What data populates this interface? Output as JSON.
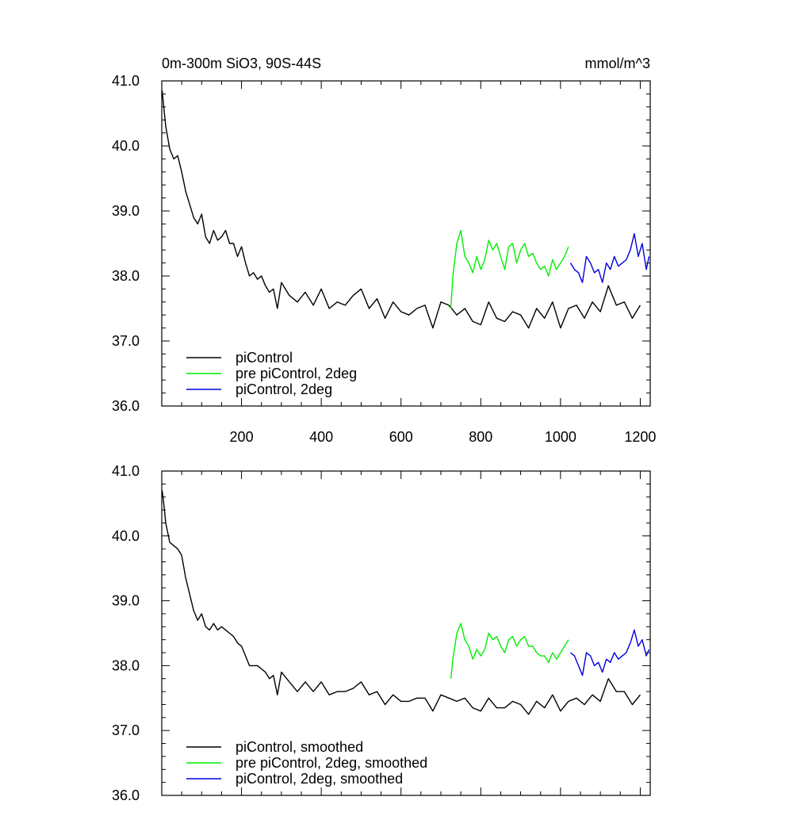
{
  "header": {
    "title": "0m-300m SiO3, 90S-44S",
    "units": "mmol/m^3"
  },
  "colors": {
    "piControl": "#000000",
    "pre_piControl_2deg": "#00ee00",
    "piControl_2deg": "#0000dd"
  },
  "chart_data": [
    {
      "type": "line",
      "panel": "top",
      "title": "0m-300m SiO3, 90S-44S",
      "units_label": "mmol/m^3",
      "xlim": [
        0,
        1225
      ],
      "ylim": [
        36.0,
        41.0
      ],
      "xticks": [
        200,
        400,
        600,
        800,
        1000,
        1200
      ],
      "xtick_labels": [
        "200",
        "400",
        "600",
        "800",
        "1000",
        "1200"
      ],
      "yticks": [
        36.0,
        37.0,
        38.0,
        39.0,
        40.0,
        41.0
      ],
      "ytick_labels": [
        "36.0",
        "37.0",
        "38.0",
        "39.0",
        "40.0",
        "41.0"
      ],
      "legend": {
        "position": "bottom-left"
      },
      "series": [
        {
          "name": "piControl",
          "color": "#000000",
          "x": [
            1,
            5,
            10,
            20,
            30,
            40,
            50,
            60,
            70,
            80,
            90,
            100,
            110,
            120,
            130,
            140,
            150,
            160,
            170,
            180,
            190,
            200,
            210,
            220,
            230,
            240,
            250,
            260,
            270,
            280,
            290,
            300,
            320,
            340,
            360,
            380,
            400,
            420,
            440,
            460,
            480,
            500,
            520,
            540,
            560,
            580,
            600,
            620,
            640,
            660,
            680,
            700,
            720,
            740,
            760,
            780,
            800,
            820,
            840,
            860,
            880,
            900,
            920,
            940,
            960,
            980,
            1000,
            1020,
            1040,
            1060,
            1080,
            1100,
            1120,
            1140,
            1160,
            1180,
            1200
          ],
          "values": [
            40.85,
            40.6,
            40.3,
            39.95,
            39.8,
            39.85,
            39.6,
            39.3,
            39.1,
            38.9,
            38.8,
            38.95,
            38.6,
            38.5,
            38.7,
            38.55,
            38.6,
            38.7,
            38.5,
            38.5,
            38.3,
            38.45,
            38.2,
            38.0,
            38.05,
            37.95,
            38.0,
            37.85,
            37.75,
            37.8,
            37.5,
            37.9,
            37.7,
            37.6,
            37.75,
            37.55,
            37.8,
            37.5,
            37.6,
            37.55,
            37.7,
            37.8,
            37.5,
            37.65,
            37.35,
            37.6,
            37.45,
            37.4,
            37.5,
            37.55,
            37.2,
            37.6,
            37.55,
            37.4,
            37.5,
            37.3,
            37.25,
            37.6,
            37.35,
            37.3,
            37.45,
            37.4,
            37.2,
            37.5,
            37.35,
            37.6,
            37.2,
            37.5,
            37.55,
            37.35,
            37.6,
            37.45,
            37.85,
            37.55,
            37.6,
            37.35,
            37.55
          ]
        },
        {
          "name": "pre piControl, 2deg",
          "color": "#00ee00",
          "x": [
            725,
            730,
            740,
            750,
            760,
            770,
            780,
            790,
            800,
            810,
            820,
            830,
            840,
            850,
            860,
            870,
            880,
            890,
            900,
            910,
            920,
            930,
            940,
            950,
            960,
            970,
            980,
            990,
            1000,
            1010,
            1020
          ],
          "values": [
            37.5,
            38.0,
            38.5,
            38.7,
            38.3,
            38.2,
            38.05,
            38.3,
            38.1,
            38.25,
            38.55,
            38.4,
            38.5,
            38.3,
            38.1,
            38.45,
            38.5,
            38.2,
            38.4,
            38.5,
            38.3,
            38.35,
            38.2,
            38.1,
            38.15,
            38.0,
            38.25,
            38.1,
            38.2,
            38.3,
            38.45
          ]
        },
        {
          "name": "piControl, 2deg",
          "color": "#0000dd",
          "x": [
            1025,
            1035,
            1045,
            1055,
            1065,
            1075,
            1085,
            1095,
            1105,
            1115,
            1125,
            1135,
            1145,
            1155,
            1165,
            1175,
            1185,
            1195,
            1205,
            1215,
            1222
          ],
          "values": [
            38.2,
            38.1,
            38.05,
            37.9,
            38.3,
            38.2,
            38.05,
            38.1,
            37.9,
            38.2,
            38.1,
            38.3,
            38.15,
            38.2,
            38.25,
            38.4,
            38.65,
            38.3,
            38.5,
            38.1,
            38.3
          ]
        }
      ]
    },
    {
      "type": "line",
      "panel": "bottom",
      "xlim": [
        0,
        1225
      ],
      "ylim": [
        36.0,
        41.0
      ],
      "yticks": [
        36.0,
        37.0,
        38.0,
        39.0,
        40.0,
        41.0
      ],
      "ytick_labels": [
        "36.0",
        "37.0",
        "38.0",
        "39.0",
        "40.0",
        "41.0"
      ],
      "xticks": [
        200,
        400,
        600,
        800,
        1000,
        1200
      ],
      "legend": {
        "position": "bottom-left"
      },
      "series": [
        {
          "name": "piControl, smoothed",
          "color": "#000000",
          "x": [
            1,
            5,
            10,
            20,
            30,
            40,
            50,
            60,
            70,
            80,
            90,
            100,
            110,
            120,
            130,
            140,
            150,
            160,
            170,
            180,
            190,
            200,
            210,
            220,
            230,
            240,
            250,
            260,
            270,
            280,
            290,
            300,
            320,
            340,
            360,
            380,
            400,
            420,
            440,
            460,
            480,
            500,
            520,
            540,
            560,
            580,
            600,
            620,
            640,
            660,
            680,
            700,
            720,
            740,
            760,
            780,
            800,
            820,
            840,
            860,
            880,
            900,
            920,
            940,
            960,
            980,
            1000,
            1020,
            1040,
            1060,
            1080,
            1100,
            1120,
            1140,
            1160,
            1180,
            1200
          ],
          "values": [
            40.7,
            40.5,
            40.2,
            39.9,
            39.85,
            39.8,
            39.7,
            39.35,
            39.1,
            38.85,
            38.7,
            38.8,
            38.6,
            38.55,
            38.65,
            38.55,
            38.6,
            38.55,
            38.5,
            38.45,
            38.35,
            38.3,
            38.15,
            38.0,
            38.0,
            38.0,
            37.95,
            37.9,
            37.8,
            37.85,
            37.55,
            37.9,
            37.75,
            37.6,
            37.75,
            37.6,
            37.75,
            37.55,
            37.6,
            37.6,
            37.65,
            37.75,
            37.55,
            37.6,
            37.4,
            37.55,
            37.45,
            37.45,
            37.5,
            37.5,
            37.3,
            37.55,
            37.5,
            37.45,
            37.5,
            37.35,
            37.3,
            37.5,
            37.35,
            37.35,
            37.45,
            37.4,
            37.25,
            37.45,
            37.35,
            37.55,
            37.3,
            37.45,
            37.5,
            37.4,
            37.55,
            37.45,
            37.8,
            37.6,
            37.6,
            37.4,
            37.55
          ]
        },
        {
          "name": "pre piControl, 2deg, smoothed",
          "color": "#00ee00",
          "x": [
            725,
            730,
            740,
            750,
            760,
            770,
            780,
            790,
            800,
            810,
            820,
            830,
            840,
            850,
            860,
            870,
            880,
            890,
            900,
            910,
            920,
            930,
            940,
            950,
            960,
            970,
            980,
            990,
            1000,
            1010,
            1020
          ],
          "values": [
            37.8,
            38.1,
            38.5,
            38.65,
            38.4,
            38.3,
            38.1,
            38.25,
            38.15,
            38.25,
            38.5,
            38.4,
            38.45,
            38.3,
            38.2,
            38.4,
            38.45,
            38.3,
            38.4,
            38.45,
            38.3,
            38.3,
            38.2,
            38.15,
            38.15,
            38.05,
            38.2,
            38.1,
            38.2,
            38.3,
            38.4
          ]
        },
        {
          "name": "piControl, 2deg, smoothed",
          "color": "#0000dd",
          "x": [
            1025,
            1035,
            1045,
            1055,
            1065,
            1075,
            1085,
            1095,
            1105,
            1115,
            1125,
            1135,
            1145,
            1155,
            1165,
            1175,
            1185,
            1195,
            1205,
            1215,
            1222
          ],
          "values": [
            38.2,
            38.15,
            38.0,
            37.85,
            38.2,
            38.15,
            38.0,
            38.05,
            37.9,
            38.1,
            38.05,
            38.2,
            38.1,
            38.15,
            38.2,
            38.35,
            38.55,
            38.3,
            38.4,
            38.15,
            38.25
          ]
        }
      ]
    }
  ]
}
